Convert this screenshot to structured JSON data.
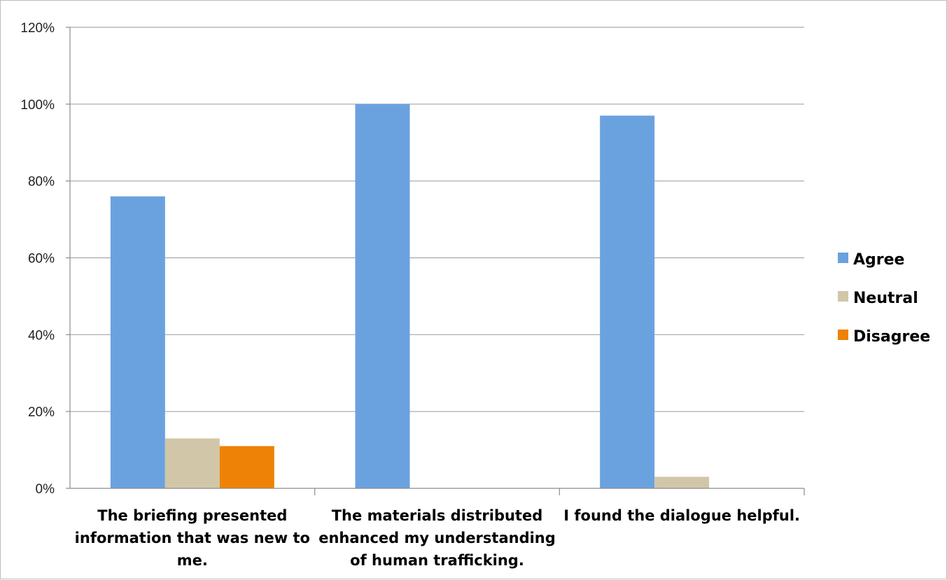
{
  "chart_data": {
    "type": "bar",
    "categories": [
      [
        "The briefing presented",
        "information that was new to",
        "me."
      ],
      [
        "The materials distributed",
        "enhanced my understanding",
        "of human trafficking."
      ],
      [
        "I found the dialogue helpful."
      ]
    ],
    "series": [
      {
        "name": "Agree",
        "color": "#6aa2df",
        "values": [
          76,
          100,
          97
        ]
      },
      {
        "name": "Neutral",
        "color": "#d1c7a8",
        "values": [
          13,
          0,
          3
        ]
      },
      {
        "name": "Disagree",
        "color": "#ee8206",
        "values": [
          11,
          0,
          0
        ]
      }
    ],
    "y_ticks": [
      "0%",
      "20%",
      "40%",
      "60%",
      "80%",
      "100%",
      "120%"
    ],
    "ylim": [
      0,
      120
    ],
    "y_unit": "%",
    "grid": true,
    "legend_position": "right"
  }
}
